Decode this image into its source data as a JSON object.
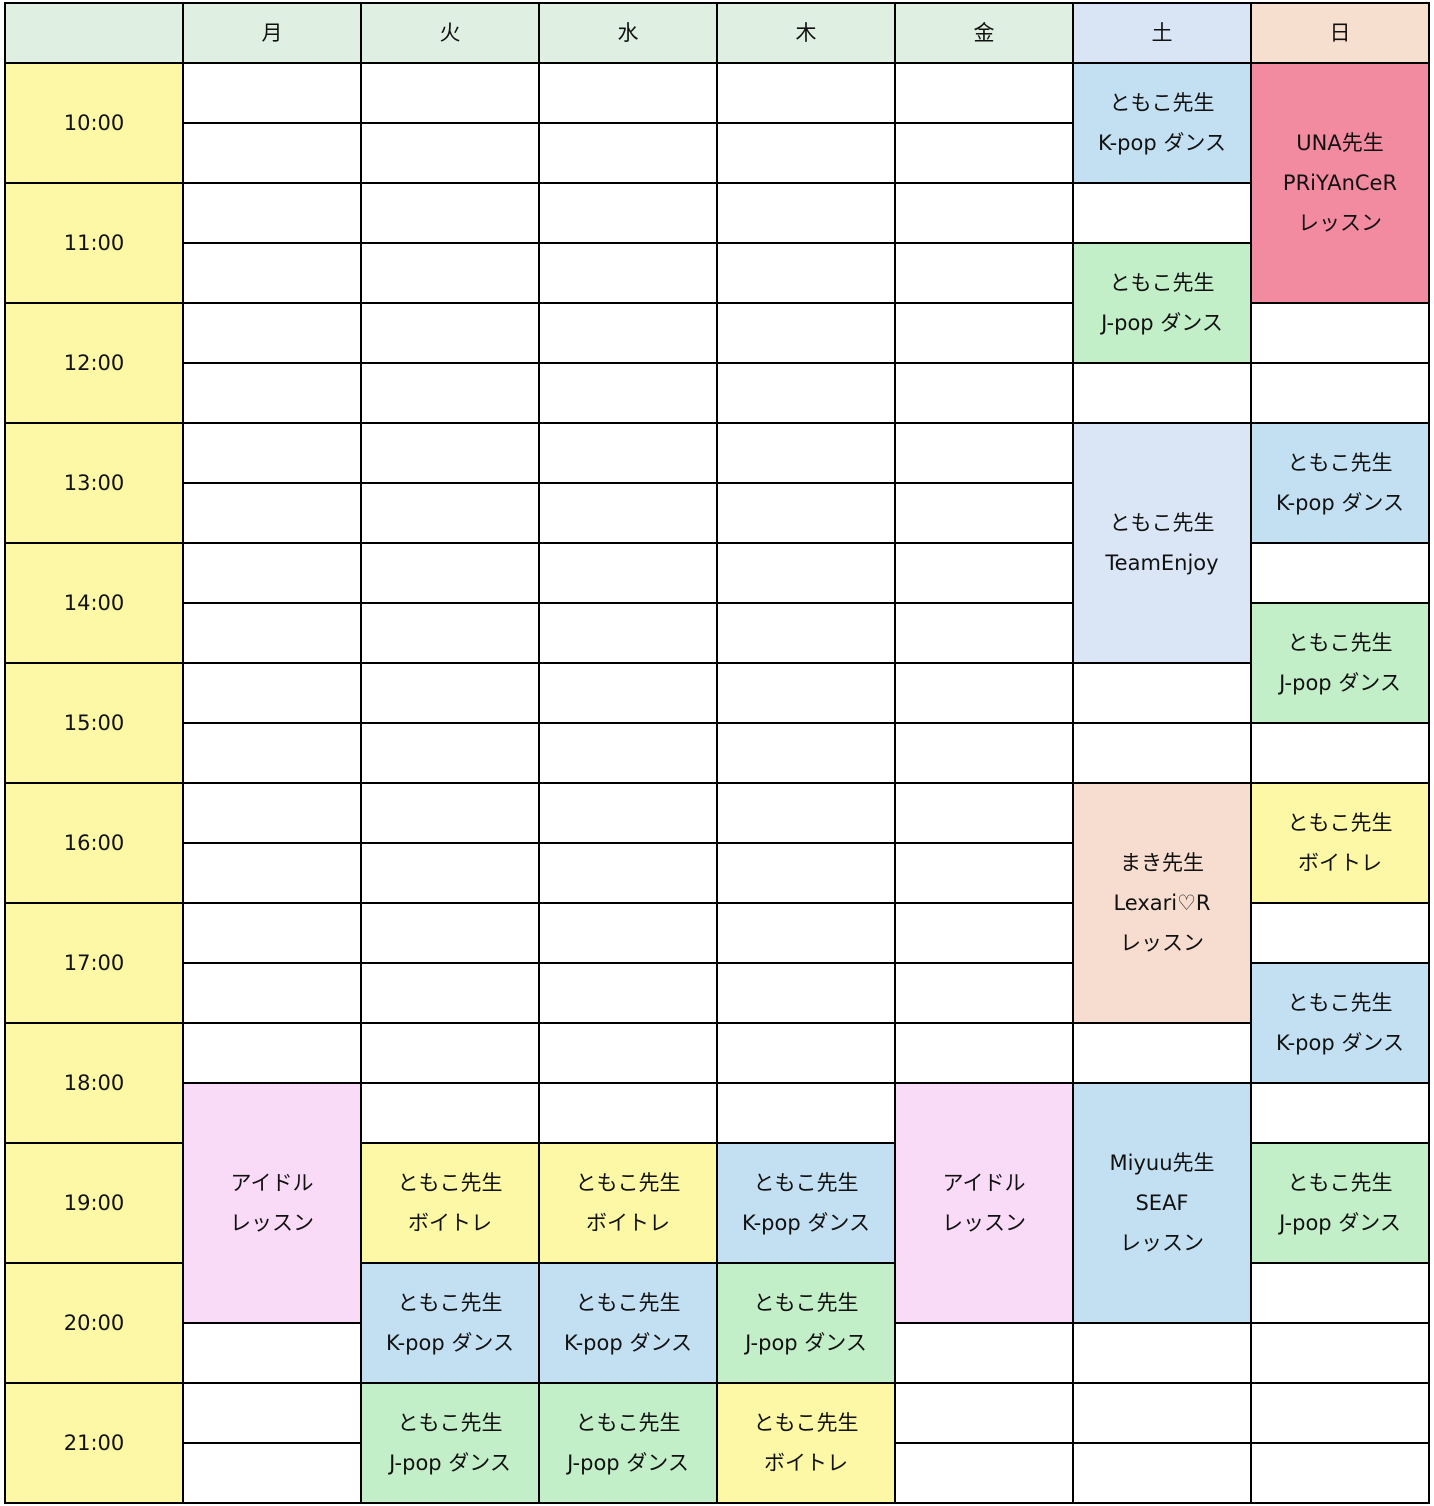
{
  "header": {
    "corner": "",
    "days": [
      "月",
      "火",
      "水",
      "木",
      "金",
      "土",
      "日"
    ],
    "colors": [
      "#dff0e3",
      "#dff0e3",
      "#dff0e3",
      "#dff0e3",
      "#dff0e3",
      "#d9e4f5",
      "#f7dfd0"
    ],
    "corner_color": "#dff0e3"
  },
  "times": [
    "10:00",
    "11:00",
    "12:00",
    "13:00",
    "14:00",
    "15:00",
    "16:00",
    "17:00",
    "18:00",
    "19:00",
    "20:00",
    "21:00"
  ],
  "time_color": "#fdf8a6",
  "colors": {
    "kpop": "#c2e0f2",
    "jpop": "#c2eec8",
    "voice": "#fdf8a6",
    "idol": "#f9dbf7",
    "una": "#f28aa0",
    "team": "#dae6f6",
    "maki": "#f6ddcf"
  },
  "events": [
    {
      "day": "土",
      "start": "10:00",
      "end": "11:00",
      "lines": [
        "ともこ先生",
        "K-pop ダンス"
      ],
      "color": "kpop"
    },
    {
      "day": "土",
      "start": "11:30",
      "end": "12:30",
      "lines": [
        "ともこ先生",
        "J-pop ダンス"
      ],
      "color": "jpop"
    },
    {
      "day": "土",
      "start": "13:00",
      "end": "15:00",
      "lines": [
        "ともこ先生",
        "TeamEnjoy"
      ],
      "color": "team"
    },
    {
      "day": "土",
      "start": "16:00",
      "end": "18:00",
      "lines": [
        "まき先生",
        "Lexari♡R",
        "レッスン"
      ],
      "color": "maki"
    },
    {
      "day": "土",
      "start": "18:30",
      "end": "20:30",
      "lines": [
        "Miyuu先生",
        "SEAF",
        "レッスン"
      ],
      "color": "kpop"
    },
    {
      "day": "日",
      "start": "10:00",
      "end": "12:00",
      "lines": [
        "UNA先生",
        "PRiYAnCeR",
        "レッスン"
      ],
      "color": "una"
    },
    {
      "day": "日",
      "start": "13:00",
      "end": "14:00",
      "lines": [
        "ともこ先生",
        "K-pop ダンス"
      ],
      "color": "kpop"
    },
    {
      "day": "日",
      "start": "14:30",
      "end": "15:30",
      "lines": [
        "ともこ先生",
        "J-pop ダンス"
      ],
      "color": "jpop"
    },
    {
      "day": "日",
      "start": "16:00",
      "end": "17:00",
      "lines": [
        "ともこ先生",
        "ボイトレ"
      ],
      "color": "voice"
    },
    {
      "day": "日",
      "start": "17:30",
      "end": "18:30",
      "lines": [
        "ともこ先生",
        "K-pop ダンス"
      ],
      "color": "kpop"
    },
    {
      "day": "日",
      "start": "19:00",
      "end": "20:00",
      "lines": [
        "ともこ先生",
        "J-pop ダンス"
      ],
      "color": "jpop"
    },
    {
      "day": "月",
      "start": "18:30",
      "end": "20:30",
      "lines": [
        "アイドル",
        "レッスン"
      ],
      "color": "idol"
    },
    {
      "day": "金",
      "start": "18:30",
      "end": "20:30",
      "lines": [
        "アイドル",
        "レッスン"
      ],
      "color": "idol"
    },
    {
      "day": "火",
      "start": "19:00",
      "end": "20:00",
      "lines": [
        "ともこ先生",
        "ボイトレ"
      ],
      "color": "voice"
    },
    {
      "day": "火",
      "start": "20:00",
      "end": "21:00",
      "lines": [
        "ともこ先生",
        "K-pop ダンス"
      ],
      "color": "kpop"
    },
    {
      "day": "火",
      "start": "21:00",
      "end": "22:00",
      "lines": [
        "ともこ先生",
        "J-pop ダンス"
      ],
      "color": "jpop"
    },
    {
      "day": "水",
      "start": "19:00",
      "end": "20:00",
      "lines": [
        "ともこ先生",
        "ボイトレ"
      ],
      "color": "voice"
    },
    {
      "day": "水",
      "start": "20:00",
      "end": "21:00",
      "lines": [
        "ともこ先生",
        "K-pop ダンス"
      ],
      "color": "kpop"
    },
    {
      "day": "水",
      "start": "21:00",
      "end": "22:00",
      "lines": [
        "ともこ先生",
        "J-pop ダンス"
      ],
      "color": "jpop"
    },
    {
      "day": "木",
      "start": "19:00",
      "end": "20:00",
      "lines": [
        "ともこ先生",
        "K-pop ダンス"
      ],
      "color": "kpop"
    },
    {
      "day": "木",
      "start": "20:00",
      "end": "21:00",
      "lines": [
        "ともこ先生",
        "J-pop ダンス"
      ],
      "color": "jpop"
    },
    {
      "day": "木",
      "start": "21:00",
      "end": "22:00",
      "lines": [
        "ともこ先生",
        "ボイトレ"
      ],
      "color": "voice"
    }
  ]
}
